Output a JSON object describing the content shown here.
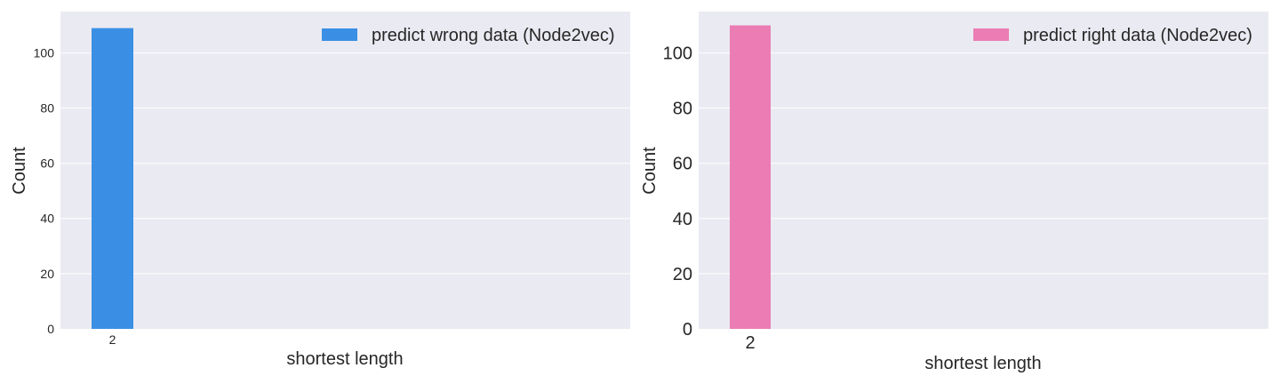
{
  "chart_data": [
    {
      "type": "bar",
      "categories": [
        "2"
      ],
      "values": [
        109
      ],
      "series": [
        {
          "name": "predict wrong data (Node2vec)",
          "values": [
            109
          ]
        }
      ],
      "xlabel": "shortest  length",
      "ylabel": "Count",
      "ylim": [
        0,
        115
      ],
      "yticks": [
        "0",
        "20",
        "40",
        "60",
        "80",
        "100"
      ],
      "xticks": [
        "2"
      ],
      "grid": true,
      "legend": "top-right",
      "color": "#3a8fe4"
    },
    {
      "type": "bar",
      "categories": [
        "2"
      ],
      "values": [
        110
      ],
      "series": [
        {
          "name": "predict right data (Node2vec)",
          "values": [
            110
          ]
        }
      ],
      "xlabel": "shortest length",
      "ylabel": "Count",
      "ylim": [
        0,
        115
      ],
      "yticks": [
        "0",
        "20",
        "40",
        "60",
        "80",
        "100"
      ],
      "xticks": [
        "2"
      ],
      "grid": true,
      "legend": "top-right",
      "color": "#eb7db4"
    }
  ]
}
